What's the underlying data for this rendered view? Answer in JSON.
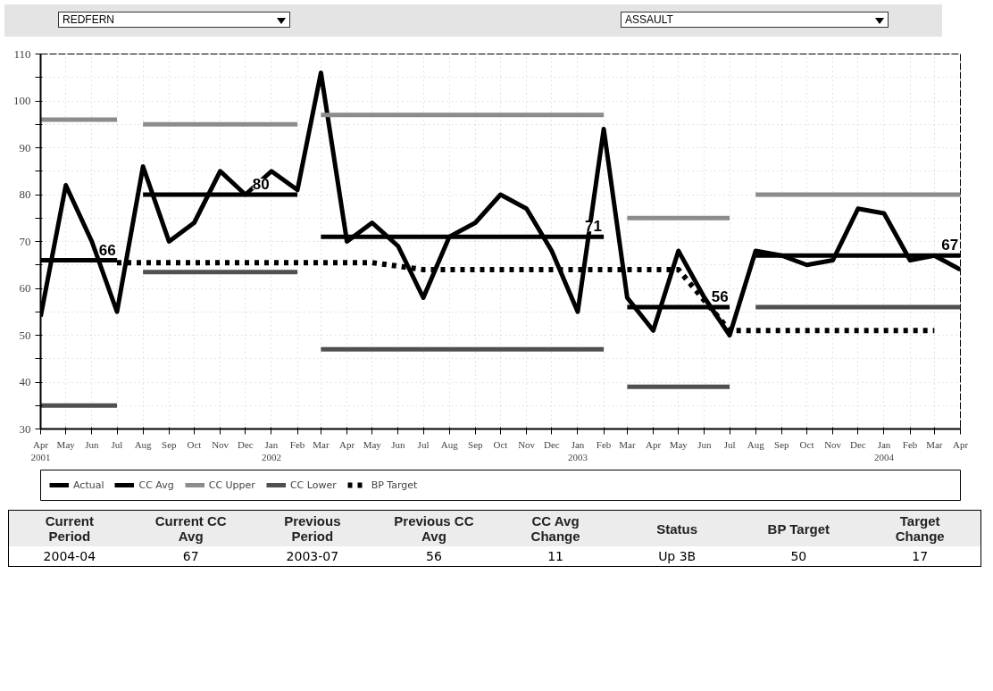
{
  "chart_data": {
    "type": "line",
    "title": "REDFERN",
    "subtitle": "ASSAULT",
    "x": [
      "2001-04",
      "2001-05",
      "2001-06",
      "2001-07",
      "2001-08",
      "2001-09",
      "2001-10",
      "2001-11",
      "2001-12",
      "2002-01",
      "2002-02",
      "2002-03",
      "2002-04",
      "2002-05",
      "2002-06",
      "2002-07",
      "2002-08",
      "2002-09",
      "2002-10",
      "2002-11",
      "2002-12",
      "2003-01",
      "2003-02",
      "2003-03",
      "2003-04",
      "2003-05",
      "2003-06",
      "2003-07",
      "2003-08",
      "2003-09",
      "2003-10",
      "2003-11",
      "2003-12",
      "2004-01",
      "2004-02",
      "2004-03",
      "2004-04"
    ],
    "series": [
      {
        "name": "Actual",
        "color": "#000000",
        "values": [
          54,
          82,
          70,
          55,
          86,
          70,
          74,
          85,
          80,
          85,
          81,
          106,
          70,
          74,
          69,
          58,
          71,
          74,
          80,
          77,
          68,
          55,
          94,
          58,
          51,
          68,
          58,
          50,
          68,
          67,
          65,
          66,
          77,
          76,
          66,
          67,
          64
        ]
      },
      {
        "name": "CC Avg",
        "color": "#000000",
        "x": [
          "2001-04",
          "2001-07",
          null,
          "2001-08",
          "2002-02",
          null,
          "2002-03",
          "2003-02",
          null,
          "2003-03",
          "2003-07",
          null,
          "2003-08",
          "2004-04"
        ],
        "values": [
          66,
          66,
          null,
          80,
          80,
          null,
          71,
          71,
          null,
          56,
          56,
          null,
          67,
          67
        ]
      },
      {
        "name": "CC Upper",
        "color": "#8c8c8c",
        "x": [
          "2001-04",
          "2001-07",
          null,
          "2001-08",
          "2002-02",
          null,
          "2002-03",
          "2003-02",
          null,
          "2003-03",
          "2003-07",
          null,
          "2003-08",
          "2004-04"
        ],
        "values": [
          96,
          96,
          null,
          95,
          95,
          null,
          97,
          97,
          null,
          75,
          75,
          null,
          80,
          80
        ]
      },
      {
        "name": "CC Lower",
        "color": "#505050",
        "x": [
          "2001-04",
          "2001-07",
          null,
          "2001-08",
          "2002-02",
          null,
          "2002-03",
          "2003-02",
          null,
          "2003-03",
          "2003-07",
          null,
          "2003-08",
          "2004-04"
        ],
        "values": [
          35,
          35,
          null,
          63.5,
          63.5,
          null,
          47,
          47,
          null,
          39,
          39,
          null,
          56,
          56
        ]
      },
      {
        "name": "BP Target",
        "color": "#000000",
        "line_style": "dotted",
        "x": [
          "2001-07",
          "2002-05",
          "2002-07",
          "2003-05",
          "2003-07",
          "2004-03"
        ],
        "values": [
          65.5,
          65.5,
          64,
          64,
          51,
          51
        ]
      }
    ],
    "xlim": [
      "2001-04",
      "2004-04"
    ],
    "xticks": [
      {
        "value": "2001-04",
        "label": "Apr\n2001"
      },
      {
        "value": "2001-05",
        "label": "May"
      },
      {
        "value": "2001-06",
        "label": "Jun"
      },
      {
        "value": "2001-07",
        "label": "Jul"
      },
      {
        "value": "2001-08",
        "label": "Aug"
      },
      {
        "value": "2001-09",
        "label": "Sep"
      },
      {
        "value": "2001-10",
        "label": "Oct"
      },
      {
        "value": "2001-11",
        "label": "Nov"
      },
      {
        "value": "2001-12",
        "label": "Dec"
      },
      {
        "value": "2002-01",
        "label": "Jan\n2002"
      },
      {
        "value": "2002-02",
        "label": "Feb"
      },
      {
        "value": "2002-03",
        "label": "Mar"
      },
      {
        "value": "2002-04",
        "label": "Apr"
      },
      {
        "value": "2002-05",
        "label": "May"
      },
      {
        "value": "2002-06",
        "label": "Jun"
      },
      {
        "value": "2002-07",
        "label": "Jul"
      },
      {
        "value": "2002-08",
        "label": "Aug"
      },
      {
        "value": "2002-09",
        "label": "Sep"
      },
      {
        "value": "2002-10",
        "label": "Oct"
      },
      {
        "value": "2002-11",
        "label": "Nov"
      },
      {
        "value": "2002-12",
        "label": "Dec"
      },
      {
        "value": "2003-01",
        "label": "Jan\n2003"
      },
      {
        "value": "2003-02",
        "label": "Feb"
      },
      {
        "value": "2003-03",
        "label": "Mar"
      },
      {
        "value": "2003-04",
        "label": "Apr"
      },
      {
        "value": "2003-05",
        "label": "May"
      },
      {
        "value": "2003-06",
        "label": "Jun"
      },
      {
        "value": "2003-07",
        "label": "Jul"
      },
      {
        "value": "2003-08",
        "label": "Aug"
      },
      {
        "value": "2003-09",
        "label": "Sep"
      },
      {
        "value": "2003-10",
        "label": "Oct"
      },
      {
        "value": "2003-11",
        "label": "Nov"
      },
      {
        "value": "2003-12",
        "label": "Dec"
      },
      {
        "value": "2004-01",
        "label": "Jan\n2004"
      },
      {
        "value": "2004-02",
        "label": "Feb"
      },
      {
        "value": "2004-03",
        "label": "Mar"
      },
      {
        "value": "2004-04",
        "label": "Apr"
      }
    ],
    "ylim": [
      30,
      110
    ],
    "yticks": [
      30,
      {
        "value": 35,
        "label": null
      },
      40,
      {
        "value": 45,
        "label": null
      },
      50,
      {
        "value": 55,
        "label": null
      },
      60,
      {
        "value": 65,
        "label": null
      },
      70,
      {
        "value": 75,
        "label": null
      },
      80,
      {
        "value": 85,
        "label": null
      },
      90,
      {
        "value": 95,
        "label": null
      },
      100,
      {
        "value": 105,
        "label": null
      },
      110
    ],
    "grid": true,
    "legend": "bottom",
    "marker": "none",
    "annotations": [
      {
        "text": "66",
        "x": "2001-06",
        "y": 66
      },
      {
        "text": "80",
        "x": "2001-12",
        "y": 80
      },
      {
        "text": "71",
        "x": "2003-01",
        "y": 71
      },
      {
        "text": "56",
        "x": "2003-06",
        "y": 56
      },
      {
        "text": "67",
        "x": "2004-03",
        "y": 67
      },
      "Current Period",
      "Current CC Avg",
      "Previous Period",
      "Previous CC Avg",
      "CC Avg Change",
      "Status",
      "BP Target",
      "Target Change",
      "2004-04",
      "67",
      "2003-07",
      "56",
      "11",
      "Up 3B",
      "50",
      "17"
    ]
  }
}
